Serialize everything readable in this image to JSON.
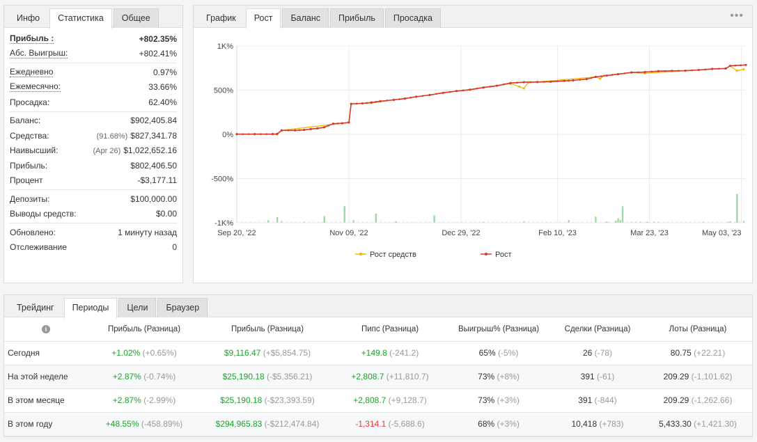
{
  "stats": {
    "tabs": [
      "Инфо",
      "Статистика",
      "Общее"
    ],
    "active_tab": 1,
    "groups": [
      [
        {
          "label": "Прибыль :",
          "value": "+802.35%",
          "label_style": "u b",
          "value_style": "greenb"
        },
        {
          "label": "Абс. Выигрыш:",
          "value": "+802.41%",
          "label_style": "u",
          "value_style": "green"
        }
      ],
      [
        {
          "label": "Ежедневно",
          "value": "0.97%",
          "label_style": "u"
        },
        {
          "label": "Ежемесячно:",
          "value": "33.66%",
          "label_style": "u"
        },
        {
          "label": "Просадка:",
          "value": "62.40%"
        }
      ],
      [
        {
          "label": "Баланс:",
          "value": "$902,405.84"
        },
        {
          "label": "Средства:",
          "prefix": "(91.68%)",
          "value": "$827,341.78"
        },
        {
          "label": "Наивысший:",
          "prefix": "(Apr 26)",
          "prefix_style": "grey",
          "value": "$1,022,652.16"
        },
        {
          "label": "Прибыль:",
          "value": "$802,406.50",
          "value_style": "green"
        },
        {
          "label": "Процент",
          "value": "-$3,177.11"
        }
      ],
      [
        {
          "label": "Депозиты:",
          "value": "$100,000.00"
        },
        {
          "label": "Выводы средств:",
          "value": "$0.00"
        }
      ],
      [
        {
          "label": "Обновлено:",
          "value": "1 минуту назад"
        },
        {
          "label": "Отслеживание",
          "value": "0"
        }
      ]
    ]
  },
  "chart_panel": {
    "tabs": [
      "График",
      "Рост",
      "Баланс",
      "Прибыль",
      "Просадка"
    ],
    "active_tab": 1,
    "menu_icon": "more-dots-icon"
  },
  "chart_data": {
    "type": "line",
    "title": "",
    "xlabel": "",
    "ylabel": "",
    "ylim": [
      -1000,
      1000
    ],
    "y_ticks": [
      "1K%",
      "500%",
      "0%",
      "-500%",
      "-1K%"
    ],
    "y_tick_values": [
      1000,
      500,
      0,
      -500,
      -1000
    ],
    "x_ticks": [
      "Sep 20, '22",
      "Nov 09, '22",
      "Dec 29, '22",
      "Feb 10, '23",
      "Mar 23, '23",
      "May 03, '23"
    ],
    "x_tick_days": [
      0,
      50,
      100,
      143,
      184,
      225
    ],
    "x_max_day": 227,
    "legend": [
      "Рост средств",
      "Рост"
    ],
    "legend_position": "bottom",
    "grid": true,
    "colors": {
      "growth": "#d9382c",
      "equity": "#f2b705",
      "volume": "#9fd7a6"
    },
    "series": [
      {
        "name": "Рост",
        "points": [
          [
            0,
            2
          ],
          [
            8,
            2
          ],
          [
            16,
            3
          ],
          [
            18,
            5
          ],
          [
            20,
            45
          ],
          [
            26,
            45
          ],
          [
            30,
            50
          ],
          [
            33,
            60
          ],
          [
            36,
            68
          ],
          [
            39,
            80
          ],
          [
            43,
            120
          ],
          [
            47,
            125
          ],
          [
            50,
            135
          ],
          [
            51,
            345
          ],
          [
            56,
            350
          ],
          [
            60,
            360
          ],
          [
            64,
            375
          ],
          [
            70,
            390
          ],
          [
            75,
            405
          ],
          [
            80,
            425
          ],
          [
            86,
            445
          ],
          [
            92,
            470
          ],
          [
            98,
            490
          ],
          [
            104,
            505
          ],
          [
            110,
            530
          ],
          [
            116,
            550
          ],
          [
            122,
            580
          ],
          [
            128,
            590
          ],
          [
            134,
            592
          ],
          [
            140,
            595
          ],
          [
            146,
            605
          ],
          [
            150,
            610
          ],
          [
            156,
            625
          ],
          [
            160,
            650
          ],
          [
            165,
            665
          ],
          [
            170,
            680
          ],
          [
            176,
            700
          ],
          [
            182,
            705
          ],
          [
            188,
            715
          ],
          [
            194,
            718
          ],
          [
            200,
            720
          ],
          [
            206,
            728
          ],
          [
            212,
            740
          ],
          [
            218,
            745
          ],
          [
            220,
            775
          ],
          [
            227,
            785
          ]
        ]
      },
      {
        "name": "Рост средств",
        "points": [
          [
            0,
            2
          ],
          [
            18,
            0
          ],
          [
            20,
            45
          ],
          [
            50,
            135
          ],
          [
            51,
            345
          ],
          [
            60,
            355
          ],
          [
            80,
            425
          ],
          [
            110,
            530
          ],
          [
            122,
            575
          ],
          [
            126,
            540
          ],
          [
            128,
            520
          ],
          [
            130,
            585
          ],
          [
            134,
            592
          ],
          [
            160,
            650
          ],
          [
            162,
            630
          ],
          [
            164,
            665
          ],
          [
            176,
            700
          ],
          [
            182,
            690
          ],
          [
            200,
            720
          ],
          [
            218,
            745
          ],
          [
            220,
            775
          ],
          [
            223,
            720
          ],
          [
            226,
            735
          ]
        ]
      }
    ],
    "volume_bars": [
      [
        14,
        14
      ],
      [
        18,
        32
      ],
      [
        20,
        10
      ],
      [
        30,
        5
      ],
      [
        39,
        38
      ],
      [
        48,
        95
      ],
      [
        52,
        15
      ],
      [
        62,
        52
      ],
      [
        71,
        8
      ],
      [
        88,
        42
      ],
      [
        110,
        5
      ],
      [
        128,
        8
      ],
      [
        148,
        15
      ],
      [
        160,
        35
      ],
      [
        165,
        6
      ],
      [
        169,
        12
      ],
      [
        170,
        25
      ],
      [
        171,
        15
      ],
      [
        172,
        95
      ],
      [
        176,
        5
      ],
      [
        178,
        5
      ],
      [
        180,
        6
      ],
      [
        183,
        5
      ],
      [
        186,
        6
      ],
      [
        188,
        5
      ],
      [
        208,
        5
      ],
      [
        219,
        5
      ],
      [
        220,
        9
      ],
      [
        223,
        165
      ],
      [
        226,
        10
      ]
    ]
  },
  "periods": {
    "tabs": [
      "Трейдинг",
      "Периоды",
      "Цели",
      "Браузер"
    ],
    "active_tab": 1,
    "headers": [
      "",
      "Прибыль (Разница)",
      "Прибыль (Разница)",
      "Пипс (Разница)",
      "Выигрыш% (Разница)",
      "Сделки (Разница)",
      "Лоты (Разница)"
    ],
    "info_icon": "info-icon",
    "rows": [
      {
        "label": "Сегодня",
        "cells": [
          {
            "main": "+1.02%",
            "diff": "(+0.65%)",
            "style": "green"
          },
          {
            "main": "$9,116.47",
            "diff": "(+$5,854.75)",
            "style": "green"
          },
          {
            "main": "+149.8",
            "diff": "(-241.2)",
            "style": "green"
          },
          {
            "main": "65%",
            "diff": "(-5%)",
            "style": ""
          },
          {
            "main": "26",
            "diff": "(-78)",
            "style": ""
          },
          {
            "main": "80.75",
            "diff": "(+22.21)",
            "style": ""
          }
        ]
      },
      {
        "label": "На этой неделе",
        "cells": [
          {
            "main": "+2.87%",
            "diff": "(-0.74%)",
            "style": "green"
          },
          {
            "main": "$25,190.18",
            "diff": "(-$5,356.21)",
            "style": "green"
          },
          {
            "main": "+2,808.7",
            "diff": "(+11,810.7)",
            "style": "green"
          },
          {
            "main": "73%",
            "diff": "(+8%)",
            "style": ""
          },
          {
            "main": "391",
            "diff": "(-61)",
            "style": ""
          },
          {
            "main": "209.29",
            "diff": "(-1,101.62)",
            "style": ""
          }
        ]
      },
      {
        "label": "В этом месяце",
        "cells": [
          {
            "main": "+2.87%",
            "diff": "(-2.99%)",
            "style": "green"
          },
          {
            "main": "$25,190.18",
            "diff": "(-$23,393.59)",
            "style": "green"
          },
          {
            "main": "+2,808.7",
            "diff": "(+9,128.7)",
            "style": "green"
          },
          {
            "main": "73%",
            "diff": "(+3%)",
            "style": ""
          },
          {
            "main": "391",
            "diff": "(-844)",
            "style": ""
          },
          {
            "main": "209.29",
            "diff": "(-1,262.66)",
            "style": ""
          }
        ]
      },
      {
        "label": "В этом году",
        "cells": [
          {
            "main": "+48.55%",
            "diff": "(-458.89%)",
            "style": "green"
          },
          {
            "main": "$294,965.83",
            "diff": "(-$212,474.84)",
            "style": "green"
          },
          {
            "main": "-1,314.1",
            "diff": "(-5,688.6)",
            "style": "red"
          },
          {
            "main": "68%",
            "diff": "(+3%)",
            "style": ""
          },
          {
            "main": "10,418",
            "diff": "(+783)",
            "style": ""
          },
          {
            "main": "5,433.30",
            "diff": "(+1,421.30)",
            "style": ""
          }
        ]
      }
    ]
  }
}
